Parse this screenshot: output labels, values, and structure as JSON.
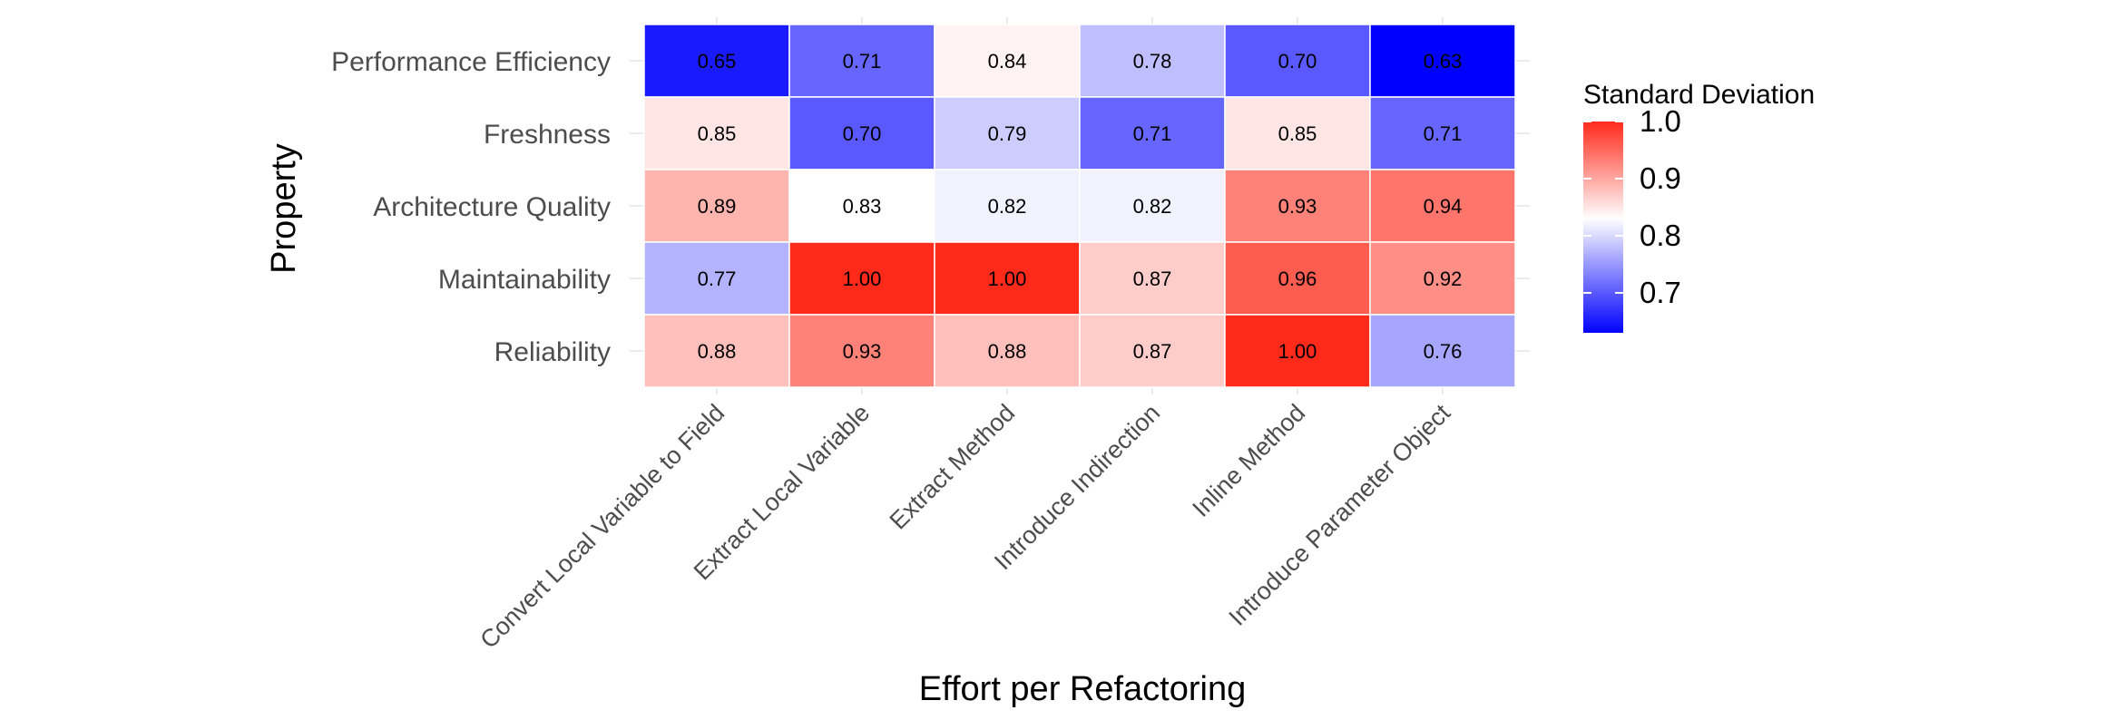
{
  "chart_data": {
    "type": "heatmap",
    "title": "",
    "xlabel": "Effort per Refactoring",
    "ylabel": "Property",
    "x_categories": [
      "Convert Local Variable to Field",
      "Extract Local Variable",
      "Extract Method",
      "Introduce Indirection",
      "Inline Method",
      "Introduce Parameter Object"
    ],
    "y_categories": [
      "Performance Efficiency",
      "Freshness",
      "Architecture Quality",
      "Maintainability",
      "Reliability"
    ],
    "values": [
      [
        0.65,
        0.71,
        0.84,
        0.78,
        0.7,
        0.63
      ],
      [
        0.85,
        0.7,
        0.79,
        0.71,
        0.85,
        0.71
      ],
      [
        0.89,
        0.83,
        0.82,
        0.82,
        0.93,
        0.94
      ],
      [
        0.77,
        1.0,
        1.0,
        0.87,
        0.96,
        0.92
      ],
      [
        0.88,
        0.93,
        0.88,
        0.87,
        1.0,
        0.76
      ]
    ],
    "legend": {
      "title": "Standard Deviation",
      "position": "right",
      "ticks": [
        "1.0",
        "0.9",
        "0.8",
        "0.7"
      ],
      "tick_values": [
        1.0,
        0.9,
        0.8,
        0.7
      ],
      "range": [
        0.63,
        1.0
      ],
      "midpoint": 0.83
    },
    "colors": {
      "low": "#0000FF",
      "mid": "#FFFFFF",
      "high": "#FF2A1A"
    },
    "grid": true
  }
}
